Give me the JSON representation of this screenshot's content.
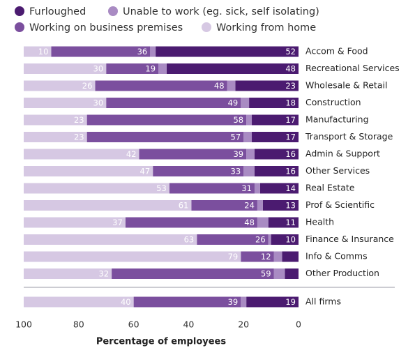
{
  "chart_data": {
    "type": "stacked-barh",
    "categories": [
      "Accom & Food",
      "Recreational Services",
      "Wholesale & Retail",
      "Construction",
      "Manufacturing",
      "Transport & Storage",
      "Admin & Support",
      "Other Services",
      "Real Estate",
      "Prof & Scientific",
      "Health",
      "Finance & Insurance",
      "Info & Comms",
      "Other Production",
      "All firms"
    ],
    "series": [
      {
        "name": "Furloughed",
        "color": "#4b1b70",
        "values": [
          52,
          48,
          23,
          18,
          17,
          17,
          16,
          16,
          14,
          13,
          11,
          10,
          6,
          5,
          19
        ],
        "value_labels": [
          "52",
          "48",
          "23",
          "18",
          "17",
          "17",
          "16",
          "16",
          "14",
          "13",
          "11",
          "10",
          null,
          null,
          "19"
        ]
      },
      {
        "name": "Unable to work (eg. sick, self isolating)",
        "color": "#a98bc3",
        "values": [
          2,
          3,
          3,
          3,
          2,
          3,
          3,
          4,
          2,
          2,
          4,
          1,
          3,
          4,
          2
        ]
      },
      {
        "name": "Working on business premises",
        "color": "#7b4f9e",
        "values": [
          36,
          19,
          48,
          49,
          58,
          57,
          39,
          33,
          31,
          24,
          48,
          26,
          12,
          59,
          39
        ],
        "value_labels": [
          "36",
          "19",
          "48",
          "49",
          "58",
          "57",
          "39",
          "33",
          "31",
          "24",
          "48",
          "26",
          "12",
          "59",
          "39"
        ]
      },
      {
        "name": "Working from home",
        "color": "#d6c8e3",
        "values": [
          10,
          30,
          26,
          30,
          23,
          23,
          42,
          47,
          53,
          61,
          37,
          63,
          79,
          32,
          40
        ],
        "value_labels": [
          "10",
          "30",
          "26",
          "30",
          "23",
          "23",
          "42",
          "47",
          "53",
          "61",
          "37",
          "63",
          "79",
          "32",
          "40"
        ]
      }
    ],
    "xlim": [
      100,
      0
    ],
    "xticks": [
      100,
      80,
      60,
      40,
      20,
      0
    ],
    "xlabel": "Percentage of employees"
  }
}
